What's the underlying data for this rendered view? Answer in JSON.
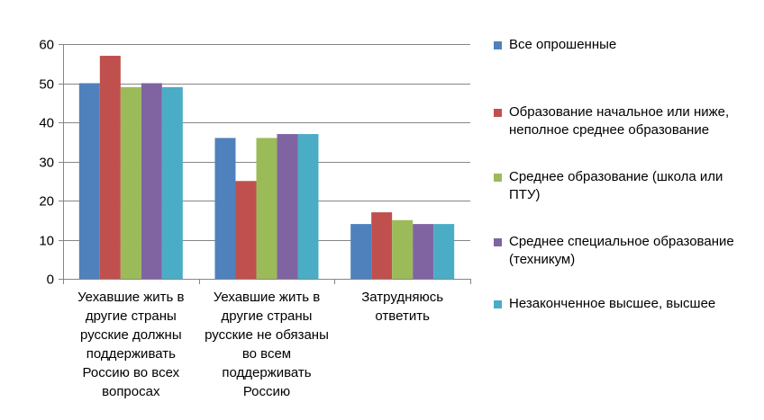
{
  "chart_data": {
    "type": "bar",
    "title": "",
    "xlabel": "",
    "ylabel": "",
    "ylim": [
      0,
      60
    ],
    "yticks": [
      0,
      10,
      20,
      30,
      40,
      50,
      60
    ],
    "grid": true,
    "legend_position": "right",
    "categories": [
      [
        "Уехавшие жить в",
        "другие страны",
        "русские должны",
        "поддерживать",
        "Россию во всех",
        "вопросах"
      ],
      [
        "Уехавшие жить в",
        "другие страны",
        "русские не обязаны",
        "во всем",
        "поддерживать",
        "Россию"
      ],
      [
        "Затрудняюсь",
        "ответить"
      ]
    ],
    "series": [
      {
        "name": "Все опрошенные",
        "color": "#4F81BD",
        "values": [
          50,
          36,
          14
        ]
      },
      {
        "name": "Образование начальное или ниже, неполное среднее образование",
        "color": "#C0504D",
        "values": [
          57,
          25,
          17
        ]
      },
      {
        "name": "Среднее образование (школа или ПТУ)",
        "color": "#9BBB59",
        "values": [
          49,
          36,
          15
        ]
      },
      {
        "name": "Среднее специальное образование (техникум)",
        "color": "#8064A2",
        "values": [
          50,
          37,
          14
        ]
      },
      {
        "name": "Незаконченное высшее, высшее",
        "color": "#4BACC6",
        "values": [
          49,
          37,
          14
        ]
      }
    ]
  }
}
